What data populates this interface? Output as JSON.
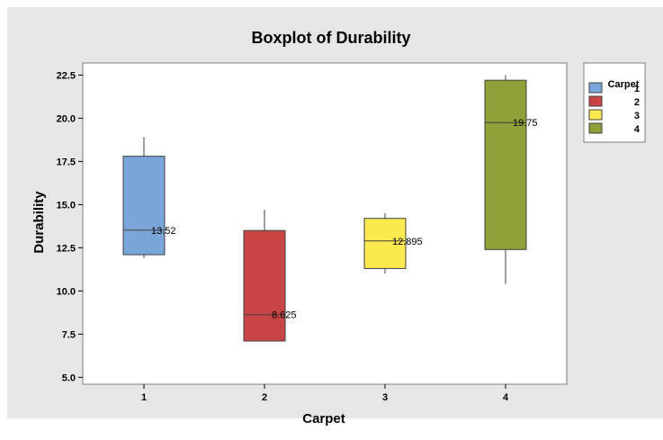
{
  "chart_data": {
    "type": "boxplot",
    "title": "Boxplot of Durability",
    "xlabel": "Carpet",
    "ylabel": "Durability",
    "categories": [
      "1",
      "2",
      "3",
      "4"
    ],
    "ylim": [
      4.6,
      23.2
    ],
    "yticks": [
      "5.0",
      "7.5",
      "10.0",
      "12.5",
      "15.0",
      "17.5",
      "20.0",
      "22.5"
    ],
    "grid": false,
    "legend": {
      "title": "Carpet",
      "position": "right",
      "entries": [
        "1",
        "2",
        "3",
        "4"
      ]
    },
    "colors": [
      "#7aa5d8",
      "#c94444",
      "#fce94f",
      "#8da137"
    ],
    "boxes": [
      {
        "category": "1",
        "min": 11.9,
        "q1": 12.1,
        "median": 13.52,
        "q3": 17.8,
        "max": 18.9,
        "median_label": "13.52"
      },
      {
        "category": "2",
        "min": 7.1,
        "q1": 7.1,
        "median": 8.625,
        "q3": 13.5,
        "max": 14.7,
        "median_label": "8.625"
      },
      {
        "category": "3",
        "min": 11.0,
        "q1": 11.3,
        "median": 12.895,
        "q3": 14.2,
        "max": 14.5,
        "median_label": "12.895"
      },
      {
        "category": "4",
        "min": 10.4,
        "q1": 12.4,
        "median": 19.75,
        "q3": 22.2,
        "max": 22.5,
        "median_label": "19.75"
      }
    ]
  }
}
